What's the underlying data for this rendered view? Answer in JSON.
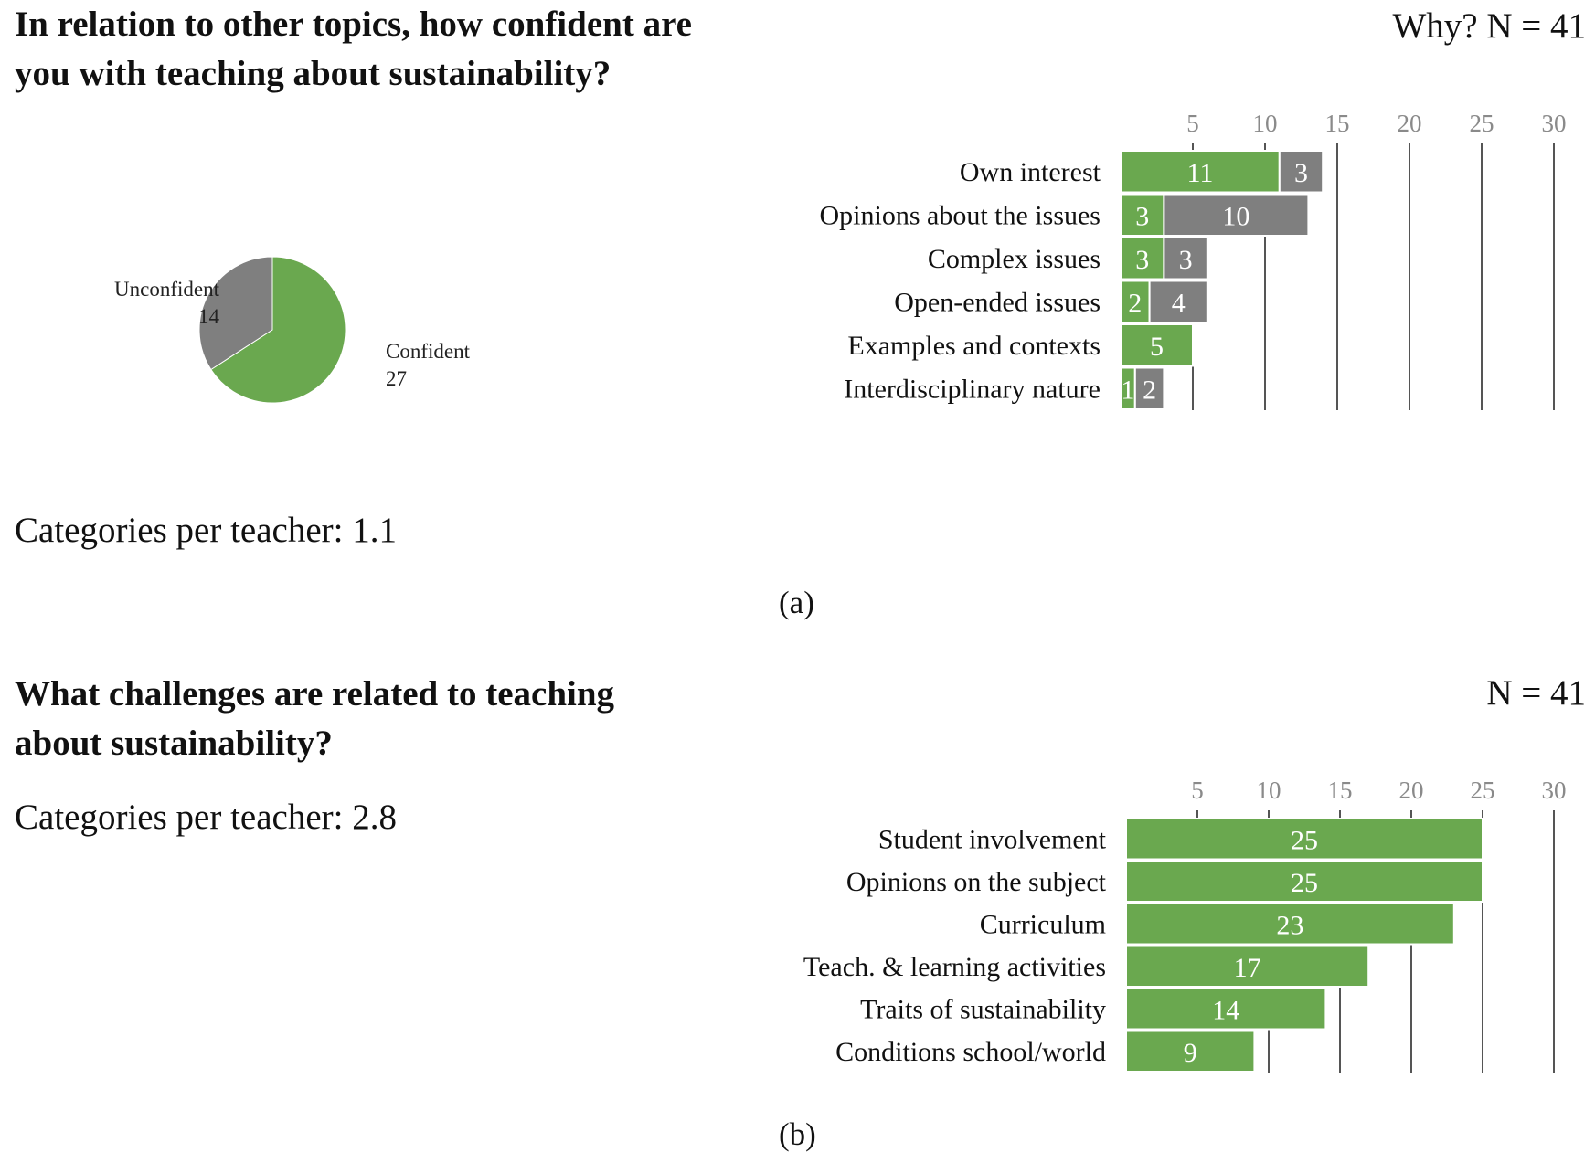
{
  "panel_a": {
    "question": "In relation to other topics, how confident are you with teaching about sustainability?",
    "categories_per_teacher": "Categories per teacher: 1.1",
    "n_label": "Why? N = 41",
    "panel_label": "(a)"
  },
  "panel_b": {
    "question": "What challenges are related to teaching about sustainability?",
    "categories_per_teacher": "Categories per teacher: 2.8",
    "n_label": "N = 41",
    "panel_label": "(b)"
  },
  "colors": {
    "green": "#6aa84f",
    "gray": "#7f7f7f",
    "grid": "#555555"
  },
  "chart_data": [
    {
      "type": "pie",
      "slices": [
        {
          "label": "Confident",
          "value": 27
        },
        {
          "label": "Unconfident",
          "value": 14
        }
      ]
    },
    {
      "type": "bar",
      "orientation": "horizontal",
      "stacked": true,
      "categories": [
        "Own interest",
        "Opinions about the issues",
        "Complex issues",
        "Open-ended issues",
        "Examples and contexts",
        "Interdisciplinary nature"
      ],
      "series": [
        {
          "name": "Confident",
          "values": [
            11,
            3,
            3,
            2,
            5,
            1
          ]
        },
        {
          "name": "Unconfident",
          "values": [
            3,
            10,
            3,
            4,
            0,
            2
          ]
        }
      ],
      "xticks": [
        5,
        10,
        15,
        20,
        25,
        30
      ],
      "xlim": [
        0,
        30
      ]
    },
    {
      "type": "bar",
      "orientation": "horizontal",
      "categories": [
        "Student involvement",
        "Opinions on the subject",
        "Curriculum",
        "Teach. & learning activities",
        "Traits of sustainability",
        "Conditions school/world"
      ],
      "values": [
        25,
        25,
        23,
        17,
        14,
        9
      ],
      "xticks": [
        5,
        10,
        15,
        20,
        25,
        30
      ],
      "xlim": [
        0,
        30
      ]
    }
  ]
}
